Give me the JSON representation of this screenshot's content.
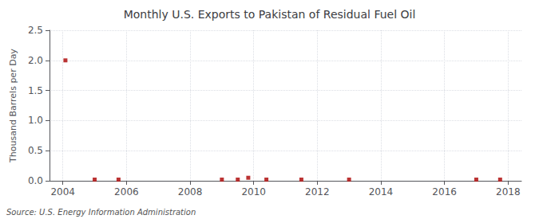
{
  "chart_data": {
    "type": "scatter",
    "title": "Monthly U.S. Exports to Pakistan of Residual Fuel Oil",
    "ylabel": "Thousand Barrels per Day",
    "annotation": "Source: U.S. Energy Information Administration",
    "x": [
      2004.08,
      2005.0,
      2005.75,
      2009.0,
      2009.5,
      2009.83,
      2010.4,
      2011.5,
      2013.0,
      2017.0,
      2017.75
    ],
    "values": [
      2.0,
      0.02,
      0.02,
      0.02,
      0.02,
      0.05,
      0.02,
      0.02,
      0.02,
      0.02,
      0.02
    ],
    "color": "#aa0000",
    "marker": "square",
    "xlim": [
      2003.58,
      2018.42
    ],
    "ylim": [
      0,
      2.5
    ],
    "xticks": [
      2004,
      2006,
      2008,
      2010,
      2012,
      2014,
      2016,
      2018
    ],
    "yticks": [
      {
        "value": 0,
        "label": "0.0"
      },
      0.5,
      {
        "value": 1,
        "label": "1.0"
      },
      1.5,
      {
        "value": 2,
        "label": "2.0"
      },
      2.5
    ],
    "grid": true
  }
}
